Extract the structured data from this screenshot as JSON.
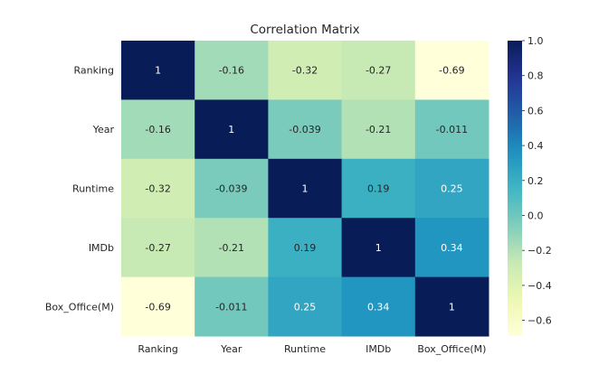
{
  "chart_data": {
    "type": "heatmap",
    "title": "Correlation Matrix",
    "x_labels": [
      "Ranking",
      "Year",
      "Runtime",
      "IMDb",
      "Box_Office(M)"
    ],
    "y_labels": [
      "Ranking",
      "Year",
      "Runtime",
      "IMDb",
      "Box_Office(M)"
    ],
    "values": [
      [
        1,
        -0.16,
        -0.32,
        -0.27,
        -0.69
      ],
      [
        -0.16,
        1,
        -0.039,
        -0.21,
        -0.011
      ],
      [
        -0.32,
        -0.039,
        1,
        0.19,
        0.25
      ],
      [
        -0.27,
        -0.21,
        0.19,
        1,
        0.34
      ],
      [
        -0.69,
        -0.011,
        0.25,
        0.34,
        1
      ]
    ],
    "cell_labels": [
      [
        "1",
        "-0.16",
        "-0.32",
        "-0.27",
        "-0.69"
      ],
      [
        "-0.16",
        "1",
        "-0.039",
        "-0.21",
        "-0.011"
      ],
      [
        "-0.32",
        "-0.039",
        "1",
        "0.19",
        "0.25"
      ],
      [
        "-0.27",
        "-0.21",
        "0.19",
        "1",
        "0.34"
      ],
      [
        "-0.69",
        "-0.011",
        "0.25",
        "0.34",
        "1"
      ]
    ],
    "colormap": "YlGnBu",
    "colorbar": {
      "range": [
        -0.69,
        1.0
      ],
      "ticks": [
        1.0,
        0.8,
        0.6,
        0.4,
        0.2,
        0.0,
        -0.2,
        -0.4,
        -0.6
      ],
      "tick_labels": [
        "1.0",
        "0.8",
        "0.6",
        "0.4",
        "0.2",
        "0.0",
        "−0.2",
        "−0.4",
        "−0.6"
      ]
    }
  }
}
